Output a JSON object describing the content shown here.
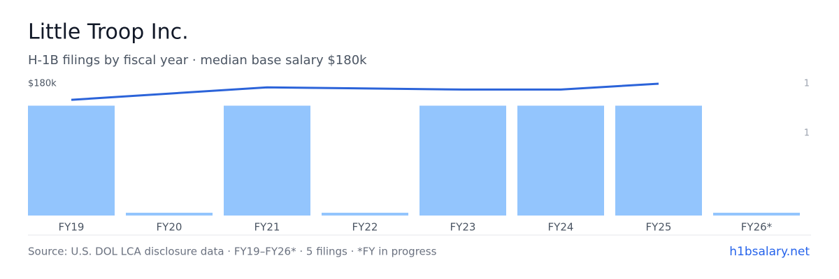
{
  "chart_data": {
    "type": "bar",
    "title": "Little Troop Inc.",
    "subtitle": "H-1B filings by fiscal year · median base salary $180k",
    "categories": [
      "FY19",
      "FY20",
      "FY21",
      "FY22",
      "FY23",
      "FY24",
      "FY25",
      "FY26*"
    ],
    "series": [
      {
        "name": "Filings",
        "color": "#93c5fd",
        "axis": "y2",
        "values": [
          1,
          0,
          1,
          0,
          1,
          1,
          1,
          0
        ]
      },
      {
        "name": "Median base salary",
        "type": "line",
        "color": "#2b63d9",
        "x": [
          "FY19",
          "FY21",
          "FY23",
          "FY24",
          "FY25"
        ],
        "values": [
          158000,
          175000,
          172000,
          172000,
          180000
        ]
      }
    ],
    "ylim": [
      0,
      180000
    ],
    "yticks": [
      {
        "value": 180000,
        "label": "$180k"
      }
    ],
    "y2lim": [
      0,
      1.2
    ],
    "y2ticks": [
      {
        "value": 1.2,
        "label": "1"
      },
      {
        "value": 0.75,
        "label": "1"
      }
    ],
    "source": "Source: U.S. DOL LCA disclosure data · FY19–FY26* · 5 filings · *FY in progress",
    "brand": "h1bsalary.net"
  }
}
